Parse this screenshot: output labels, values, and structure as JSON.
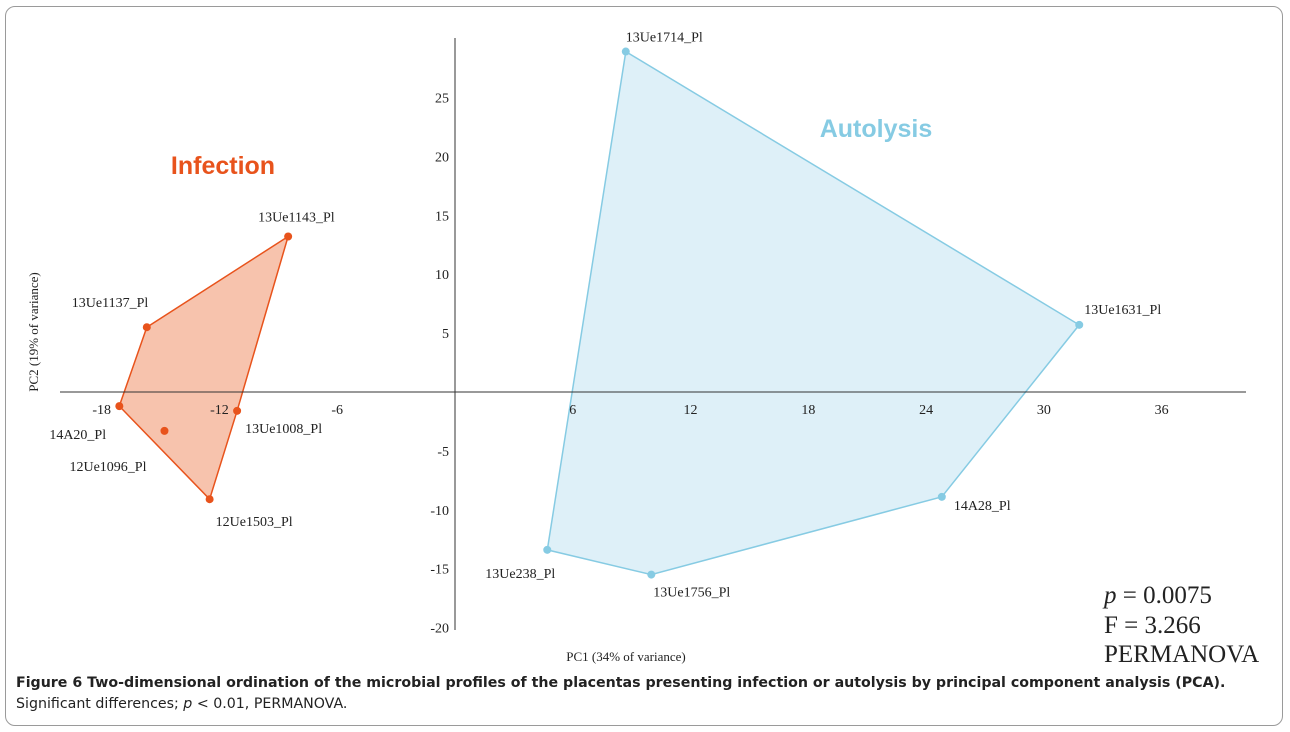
{
  "chart_data": {
    "type": "scatter",
    "xlabel": "PC1 (34% of variance)",
    "ylabel": "PC2 (19% of variance)",
    "xlim": [
      -21,
      41
    ],
    "ylim": [
      -21,
      30
    ],
    "xticks": [
      -18,
      -12,
      -6,
      6,
      12,
      18,
      24,
      30,
      36
    ],
    "yticks": [
      -20,
      -15,
      -10,
      -5,
      5,
      10,
      15,
      20,
      25
    ],
    "groups": [
      {
        "name": "Infection",
        "color": "#e8531c",
        "fill": "#f7c3ad",
        "points": [
          {
            "label": "13Ue1143_Pl",
            "x": -8.5,
            "y": 13.2
          },
          {
            "label": "13Ue1137_Pl",
            "x": -15.7,
            "y": 5.5
          },
          {
            "label": "14A20_Pl",
            "x": -17.1,
            "y": -1.2
          },
          {
            "label": "12Ue1096_Pl",
            "x": -14.8,
            "y": -3.3
          },
          {
            "label": "13Ue1008_Pl",
            "x": -11.1,
            "y": -1.6
          },
          {
            "label": "12Ue1503_Pl",
            "x": -12.5,
            "y": -9.1
          }
        ],
        "hull": [
          "13Ue1143_Pl",
          "13Ue1137_Pl",
          "14A20_Pl",
          "12Ue1503_Pl",
          "13Ue1008_Pl"
        ]
      },
      {
        "name": "Autolysis",
        "color": "#86cbe3",
        "fill": "#def0f8",
        "points": [
          {
            "label": "13Ue1714_Pl",
            "x": 8.7,
            "y": 28.9
          },
          {
            "label": "13Ue1631_Pl",
            "x": 31.8,
            "y": 5.7
          },
          {
            "label": "14A28_Pl",
            "x": 24.8,
            "y": -8.9
          },
          {
            "label": "13Ue1756_Pl",
            "x": 10.0,
            "y": -15.5
          },
          {
            "label": "13Ue238_Pl",
            "x": 4.7,
            "y": -13.4
          }
        ],
        "hull": [
          "13Ue1714_Pl",
          "13Ue1631_Pl",
          "14A28_Pl",
          "13Ue1756_Pl",
          "13Ue238_Pl"
        ]
      }
    ],
    "stats": {
      "p_symbol": "p",
      "p_rest": " = 0.0075",
      "f_text": "F = 3.266",
      "test_text": "PERMANOVA"
    }
  },
  "caption": {
    "bold": "Figure 6  Two-dimensional ordination of the microbial profiles of the placentas presenting infection or autolysis by principal compo­nent analysis (PCA).",
    "plain_before_p": " Significant differences; ",
    "p_italic": "p",
    "plain_after_p": " < 0.01, PERMANOVA."
  }
}
